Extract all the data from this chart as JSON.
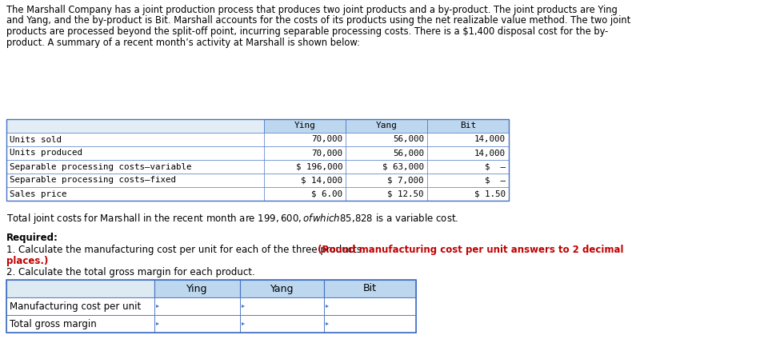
{
  "intro_lines": [
    "The Marshall Company has a joint production process that produces two joint products and a by-product. The joint products are Ying",
    "and Yang, and the by-product is Bit. Marshall accounts for the costs of its products using the net realizable value method. The two joint",
    "products are processed beyond the split-off point, incurring separable processing costs. There is a $1,400 disposal cost for the by-",
    "product. A summary of a recent month’s activity at Marshall is shown below:"
  ],
  "table1_header": [
    "",
    "Ying",
    "Yang",
    "Bit"
  ],
  "table1_rows": [
    [
      "Units sold",
      "70,000",
      "56,000",
      "14,000"
    ],
    [
      "Units produced",
      "70,000",
      "56,000",
      "14,000"
    ],
    [
      "Separable processing costs–variable",
      "$ 196,000",
      "$ 63,000",
      "$  –"
    ],
    [
      "Separable processing costs–fixed",
      "$ 14,000",
      "$ 7,000",
      "$  –"
    ],
    [
      "Sales price",
      "$ 6.00",
      "$ 12.50",
      "$ 1.50"
    ]
  ],
  "joint_cost_text": "Total joint costs for Marshall in the recent month are $199,600, of which $85,828 is a variable cost.",
  "required_label": "Required:",
  "req_line1_black": "1. Calculate the manufacturing cost per unit for each of the three products. ",
  "req_line1_red": "(Round manufacturing cost per unit answers to 2 decimal",
  "req_line2_red": "places.)",
  "req_line3": "2. Calculate the total gross margin for each product.",
  "table2_header": [
    "",
    "Ying",
    "Yang",
    "Bit"
  ],
  "table2_rows": [
    [
      "Manufacturing cost per unit",
      "",
      "",
      ""
    ],
    [
      "Total gross margin",
      "",
      "",
      ""
    ]
  ],
  "header_bg": "#BDD7EE",
  "table_border": "#4472C4",
  "bg_color": "#FFFFFF"
}
